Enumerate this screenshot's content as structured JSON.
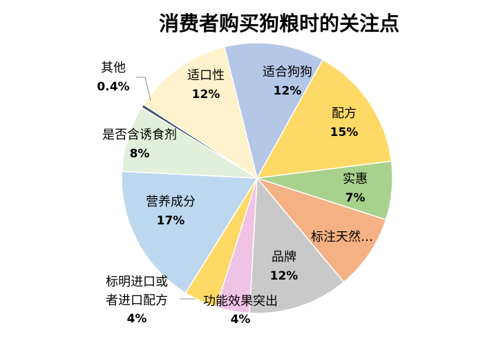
{
  "chart_data": {
    "type": "pie",
    "title": "消费者购买狗粮时的关注点",
    "slices": [
      {
        "label": "适合狗狗",
        "percent_label": "12%",
        "value": 12,
        "color": "#B4C7E7"
      },
      {
        "label": "配方",
        "percent_label": "15%",
        "value": 15,
        "color": "#FFD966"
      },
      {
        "label": "实惠",
        "percent_label": "7%",
        "value": 7,
        "color": "#A9D18E"
      },
      {
        "label": "标注天然…",
        "percent_label": "",
        "value": 9,
        "color": "#F4B183"
      },
      {
        "label": "品牌",
        "percent_label": "12%",
        "value": 12,
        "color": "#C9C9C9"
      },
      {
        "label": "功能效果突出",
        "percent_label": "4%",
        "value": 4,
        "color": "#F0C3E6"
      },
      {
        "label": "标明进口或者进口配方",
        "label_lines": [
          "标明进口或",
          "者进口配方"
        ],
        "percent_label": "4%",
        "value": 4,
        "color": "#FFD966"
      },
      {
        "label": "营养成分",
        "percent_label": "17%",
        "value": 17,
        "color": "#BDD7EE"
      },
      {
        "label": "是否含诱食剂",
        "percent_label": "8%",
        "value": 8,
        "color": "#E2EFDA"
      },
      {
        "label": "其他",
        "percent_label": "0.4%",
        "value": 0.4,
        "color": "#44546A"
      },
      {
        "label": "适口性",
        "percent_label": "12%",
        "value": 12,
        "color": "#FFF2CC"
      }
    ],
    "legend": "none"
  }
}
